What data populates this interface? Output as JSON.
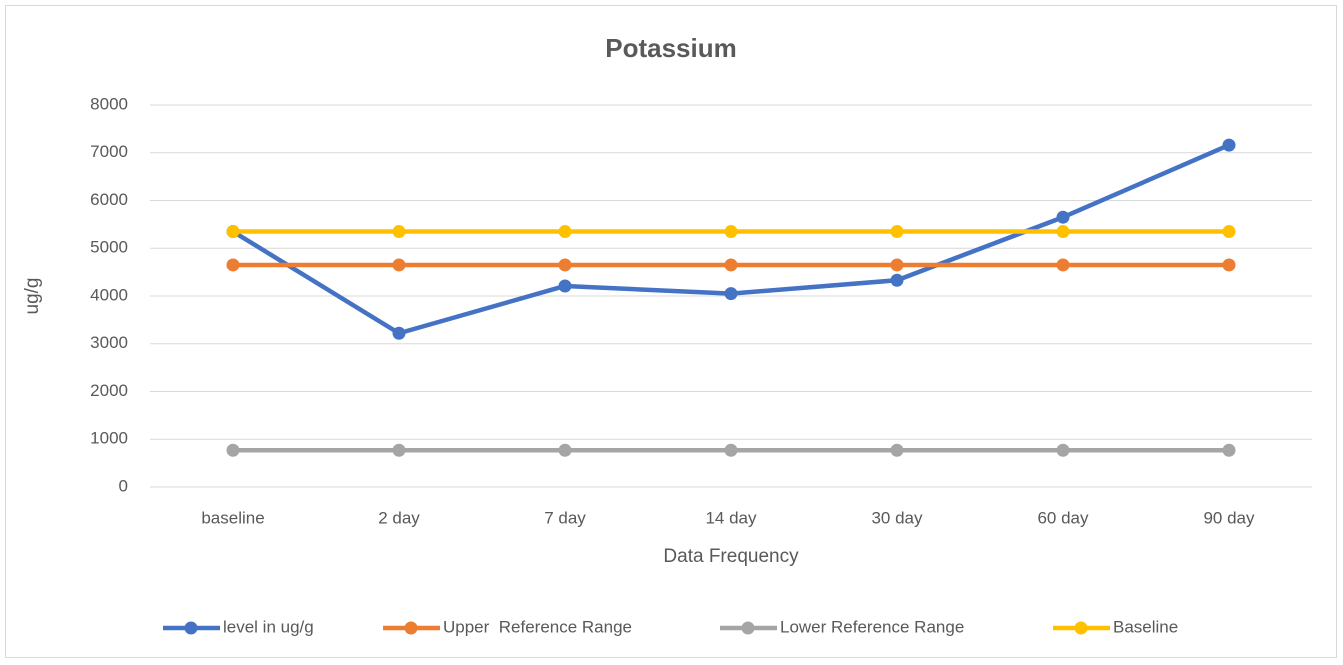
{
  "chart_data": {
    "type": "line",
    "title": "Potassium",
    "x_label": "Data Frequency",
    "y_label": "ug/g",
    "categories": [
      "baseline",
      "2 day",
      "7 day",
      "14 day",
      "30 day",
      "60 day",
      "90 day"
    ],
    "series": [
      {
        "name": "level in ug/g",
        "color": "#4472c4",
        "values": [
          5350,
          3220,
          4210,
          4050,
          4330,
          5650,
          7160
        ]
      },
      {
        "name": "Upper  Reference Range",
        "color": "#ed7d31",
        "values": [
          4650,
          4650,
          4650,
          4650,
          4650,
          4650,
          4650
        ]
      },
      {
        "name": "Lower Reference Range",
        "color": "#a5a5a5",
        "values": [
          770,
          770,
          770,
          770,
          770,
          770,
          770
        ]
      },
      {
        "name": "Baseline",
        "color": "#ffc000",
        "values": [
          5350,
          5350,
          5350,
          5350,
          5350,
          5350,
          5350
        ]
      }
    ],
    "ylim": [
      0,
      8000
    ],
    "yticks": [
      0,
      1000,
      2000,
      3000,
      4000,
      5000,
      6000,
      7000,
      8000
    ],
    "grid": true,
    "legend": "bottom"
  }
}
